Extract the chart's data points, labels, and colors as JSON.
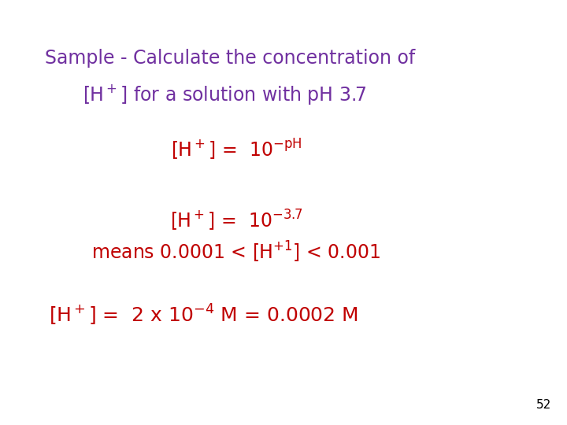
{
  "background_color": "#ffffff",
  "title_color": "#7030a0",
  "body_color": "#c00000",
  "page_number": "52",
  "page_number_color": "#000000",
  "figsize": [
    7.2,
    5.4
  ],
  "dpi": 100
}
